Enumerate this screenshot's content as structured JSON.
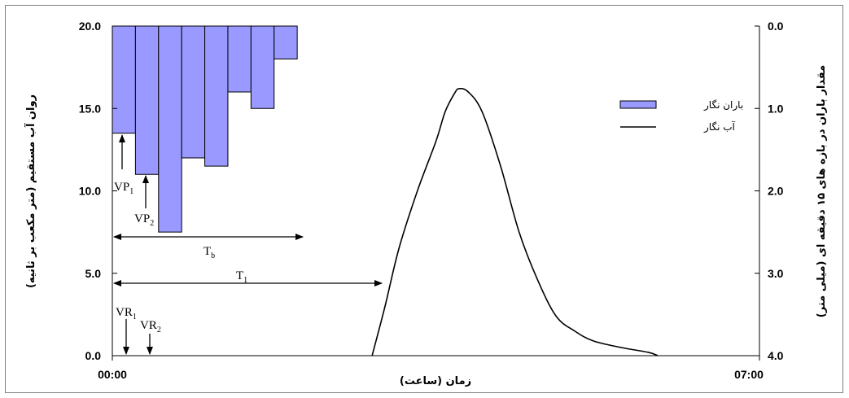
{
  "chart_data": {
    "type": "bar+line",
    "xlabel": "زمان (ساعت)",
    "ylabel_left": "روان آب مستقیم (متر مکعب بر ثانیه)",
    "ylabel_right": "مقدار باران در بازه های ۱۵ دقیقه ای (میلی متر)",
    "x_tick_labels": [
      "00:00",
      "07:00"
    ],
    "xlim_hours": [
      0,
      7
    ],
    "ylim_left": [
      0,
      20
    ],
    "ylim_right": [
      0,
      4
    ],
    "right_axis_inverted": true,
    "left_ticks": [
      "0.0",
      "5.0",
      "10.0",
      "15.0",
      "20.0"
    ],
    "right_ticks": [
      "0.0",
      "1.0",
      "2.0",
      "3.0",
      "4.0"
    ],
    "legend_position": "top-right",
    "series": [
      {
        "name": "باران نگار",
        "kind": "bar",
        "color": "#9999ff",
        "interval_hours": 0.25,
        "x_start_hours": [
          0,
          0.25,
          0.5,
          0.75,
          1.0,
          1.25,
          1.5,
          1.75
        ],
        "values_mm": [
          1.3,
          1.8,
          2.5,
          1.6,
          1.7,
          0.8,
          1.0,
          0.4
        ]
      },
      {
        "name": "آب نگار",
        "kind": "line",
        "color": "#000000",
        "x_hours": [
          2.81,
          2.95,
          3.1,
          3.3,
          3.5,
          3.6,
          3.7,
          3.75,
          3.85,
          4.0,
          4.2,
          4.4,
          4.6,
          4.8,
          5.0,
          5.2,
          5.5,
          5.8,
          5.9
        ],
        "y_m3s": [
          0,
          3.0,
          6.5,
          10.0,
          13.0,
          14.8,
          15.9,
          16.2,
          16.0,
          14.8,
          11.5,
          7.5,
          4.6,
          2.4,
          1.5,
          0.9,
          0.5,
          0.2,
          0
        ]
      }
    ],
    "annotations": {
      "vp1": {
        "main": "VP",
        "sub": "1"
      },
      "vp2": {
        "main": "VP",
        "sub": "2"
      },
      "vr1": {
        "main": "VR",
        "sub": "1"
      },
      "vr2": {
        "main": "VR",
        "sub": "2"
      },
      "tb": {
        "main": "T",
        "sub": "b"
      },
      "t1": {
        "main": "T",
        "sub": "1"
      }
    }
  }
}
